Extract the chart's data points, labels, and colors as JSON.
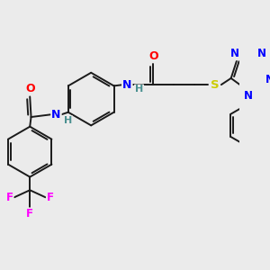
{
  "background_color": "#ebebeb",
  "bond_color": "#1a1a1a",
  "colors": {
    "N": "#0000ff",
    "O": "#ff0000",
    "S": "#cccc00",
    "F": "#ff00ff",
    "C": "#1a1a1a",
    "H": "#4a9090"
  },
  "figsize": [
    3.0,
    3.0
  ],
  "dpi": 100
}
